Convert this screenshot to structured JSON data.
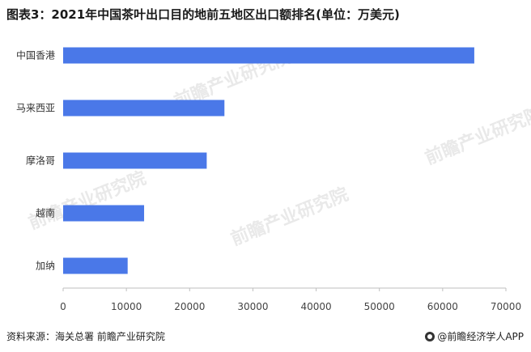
{
  "title": "图表3：2021年中国茶叶出口目的地前五地区出口额排名(单位：万美元)",
  "source": "资料来源：海关总署 前瞻产业研究院",
  "brand": "@前瞻经济学人APP",
  "watermark": "前瞻产业研究院",
  "colors": {
    "bar": "#4a78e8",
    "axis": "#bfbfbf"
  },
  "chart_data": {
    "type": "bar",
    "orientation": "horizontal",
    "categories": [
      "中国香港",
      "马来西亚",
      "摩洛哥",
      "越南",
      "加纳"
    ],
    "values": [
      65000,
      25500,
      22700,
      12800,
      10200
    ],
    "xlim": [
      0,
      70000
    ],
    "xticks": [
      0,
      10000,
      20000,
      30000,
      40000,
      50000,
      60000,
      70000
    ],
    "xtick_labels": [
      "0",
      "10000",
      "20000",
      "30000",
      "40000",
      "50000",
      "60000",
      "70000"
    ],
    "grid": false,
    "title": "图表3：2021年中国茶叶出口目的地前五地区出口额排名(单位：万美元)"
  }
}
